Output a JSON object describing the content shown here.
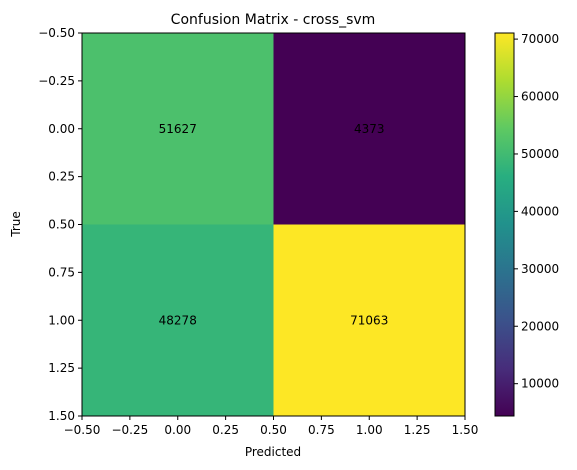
{
  "chart_data": {
    "type": "heatmap",
    "title": "Confusion Matrix - cross_svm",
    "xlabel": "Predicted",
    "ylabel": "True",
    "matrix": [
      [
        51627,
        4373
      ],
      [
        48278,
        71063
      ]
    ],
    "cell_labels": [
      "51627",
      "4373",
      "48278",
      "71063"
    ],
    "xlim": [
      -0.5,
      1.5
    ],
    "ylim": [
      1.5,
      -0.5
    ],
    "x_ticks": [
      -0.5,
      -0.25,
      0.0,
      0.25,
      0.5,
      0.75,
      1.0,
      1.25,
      1.5
    ],
    "x_tick_labels": [
      "−0.50",
      "−0.25",
      "0.00",
      "0.25",
      "0.50",
      "0.75",
      "1.00",
      "1.25",
      "1.50"
    ],
    "y_ticks": [
      -0.5,
      -0.25,
      0.0,
      0.25,
      0.5,
      0.75,
      1.0,
      1.25,
      1.5
    ],
    "y_tick_labels": [
      "−0.50",
      "−0.25",
      "0.00",
      "0.25",
      "0.50",
      "0.75",
      "1.00",
      "1.25",
      "1.50"
    ],
    "colorbar": {
      "min": 4373,
      "max": 71063,
      "ticks": [
        10000,
        20000,
        30000,
        40000,
        50000,
        60000,
        70000
      ],
      "tick_labels": [
        "10000",
        "20000",
        "30000",
        "40000",
        "50000",
        "60000",
        "70000"
      ],
      "colormap": "viridis"
    },
    "grid": false
  }
}
